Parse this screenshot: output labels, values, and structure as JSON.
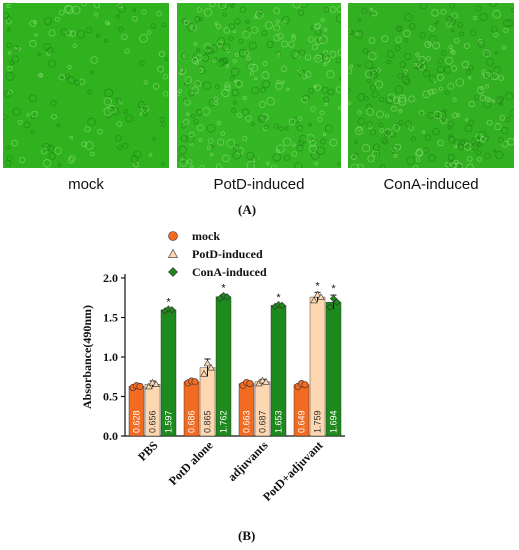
{
  "figure": {
    "panel_a_label": "(A)",
    "panel_b_label": "(B)"
  },
  "micrographs": [
    {
      "caption": "mock",
      "tint": "#2fb21e"
    },
    {
      "caption": "PotD-induced",
      "tint": "#35b624"
    },
    {
      "caption": "ConA-induced",
      "tint": "#33b022"
    }
  ],
  "chart_data": {
    "type": "bar",
    "ylabel": "Absorbance(490nm)",
    "ylim": [
      0.0,
      2.0
    ],
    "yticks": [
      "0.0",
      "0.5",
      "1.0",
      "1.5",
      "2.0"
    ],
    "categories": [
      "PBS",
      "PotD alone",
      "adjuvants",
      "PotD+adjuvant"
    ],
    "legend_position": "top-left",
    "series": [
      {
        "name": "mock",
        "color": "#f26b22",
        "marker": "circle",
        "values": [
          0.628,
          0.686,
          0.663,
          0.649
        ],
        "labels": [
          "0.628",
          "0.686",
          "0.663",
          "0.649"
        ],
        "errors": [
          0.02,
          0.02,
          0.03,
          0.03
        ],
        "significant": [
          false,
          false,
          false,
          false
        ]
      },
      {
        "name": "PotD-induced",
        "color": "#fcd7b2",
        "marker": "triangle",
        "values": [
          0.656,
          0.865,
          0.687,
          1.759
        ],
        "labels": [
          "0.656",
          "0.865",
          "0.687",
          "1.759"
        ],
        "errors": [
          0.04,
          0.11,
          0.03,
          0.06
        ],
        "significant": [
          false,
          false,
          false,
          true
        ]
      },
      {
        "name": "ConA-induced",
        "color": "#1e8a1e",
        "marker": "diamond",
        "values": [
          1.597,
          1.762,
          1.653,
          1.694
        ],
        "labels": [
          "1.597",
          "1.762",
          "1.653",
          "1.694"
        ],
        "errors": [
          0.02,
          0.03,
          0.02,
          0.09
        ],
        "significant": [
          true,
          true,
          true,
          true
        ]
      }
    ],
    "significance_mark": "*"
  }
}
